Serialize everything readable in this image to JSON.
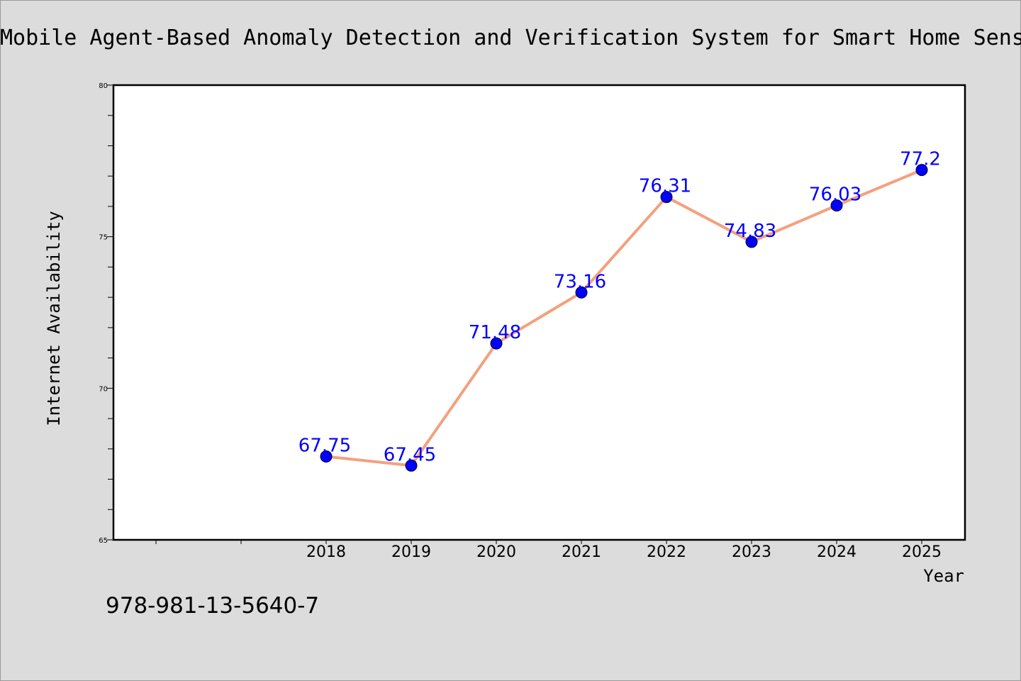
{
  "chart_data": {
    "type": "line",
    "title": "Mobile Agent-Based Anomaly Detection and Verification System for Smart Home Sensor Networks",
    "xlabel": "Year",
    "ylabel": "Internet Availability",
    "categories": [
      "2018",
      "2019",
      "2020",
      "2021",
      "2022",
      "2023",
      "2024",
      "2025"
    ],
    "x_slots": [
      "",
      "",
      "2018",
      "2019",
      "2020",
      "2021",
      "2022",
      "2023",
      "2024",
      "2025"
    ],
    "values": [
      67.75,
      67.45,
      71.48,
      73.16,
      76.31,
      74.83,
      76.03,
      77.2
    ],
    "data_labels": [
      "67.75",
      "67.45",
      "71.48",
      "73.16",
      "76.31",
      "74.83",
      "76.03",
      "77.2"
    ],
    "ylim": [
      65,
      80
    ],
    "yticks": [
      "65",
      "70",
      "75",
      "80"
    ],
    "ytick_values": [
      65,
      70,
      75,
      80
    ],
    "yminor_step": 1,
    "grid": false,
    "legend": "none",
    "line_color": "#f4a07e",
    "marker_color": "#0000ff",
    "label_color": "#0000ff"
  },
  "footnote": "978-981-13-5640-7"
}
